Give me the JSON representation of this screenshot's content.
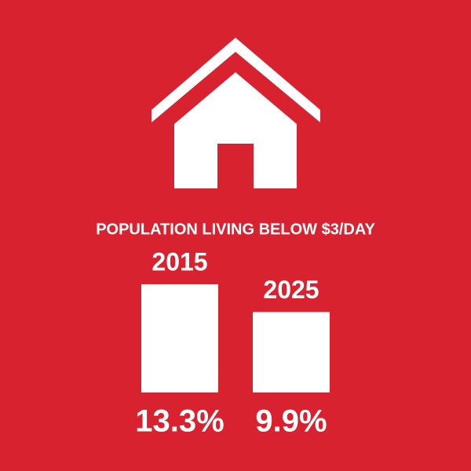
{
  "chart_data": {
    "type": "bar",
    "title": "POPULATION LIVING BELOW $3/DAY",
    "categories": [
      "2015",
      "2025"
    ],
    "values": [
      13.3,
      9.9
    ],
    "value_labels": [
      "13.3%",
      "9.9%"
    ],
    "color": "#ffffff",
    "background": "#d8222f",
    "ylim": [
      0,
      14
    ]
  }
}
